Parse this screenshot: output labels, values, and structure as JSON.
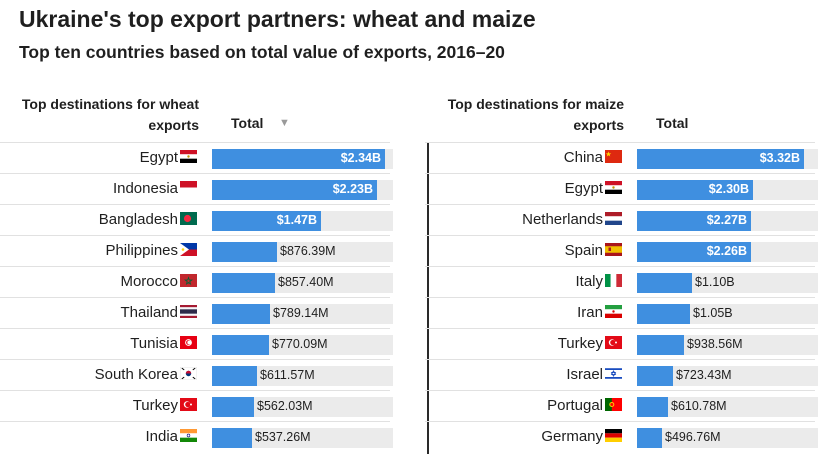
{
  "title": "Ukraine's top export partners: wheat and maize",
  "subtitle": "Top ten countries based on total value of exports, 2016–20",
  "chart_data": [
    {
      "type": "bar",
      "header_destination": "Top destinations for wheat exports",
      "header_total": "Total",
      "sort_icon": "sort-descending-triangle-icon",
      "axis_max": 2.45,
      "unit": "billion USD",
      "categories": [
        "Egypt",
        "Indonesia",
        "Bangladesh",
        "Philippines",
        "Morocco",
        "Thailand",
        "Tunisia",
        "South Korea",
        "Turkey",
        "India"
      ],
      "values": [
        2.34,
        2.23,
        1.47,
        0.87639,
        0.8574,
        0.78914,
        0.77009,
        0.61157,
        0.56203,
        0.53726
      ],
      "labels": [
        "$2.34B",
        "$2.23B",
        "$1.47B",
        "$876.39M",
        "$857.40M",
        "$789.14M",
        "$770.09M",
        "$611.57M",
        "$562.03M",
        "$537.26M"
      ],
      "flags": [
        "egypt-flag",
        "indonesia-flag",
        "bangladesh-flag",
        "philippines-flag",
        "morocco-flag",
        "thailand-flag",
        "tunisia-flag",
        "south-korea-flag",
        "turkey-flag",
        "india-flag"
      ]
    },
    {
      "type": "bar",
      "header_destination": "Top destinations for maize exports",
      "header_total": "Total",
      "axis_max": 3.6,
      "unit": "billion USD",
      "categories": [
        "China",
        "Egypt",
        "Netherlands",
        "Spain",
        "Italy",
        "Iran",
        "Turkey",
        "Israel",
        "Portugal",
        "Germany"
      ],
      "values": [
        3.32,
        2.3,
        2.27,
        2.26,
        1.1,
        1.05,
        0.93856,
        0.72343,
        0.61078,
        0.49676
      ],
      "labels": [
        "$3.32B",
        "$2.30B",
        "$2.27B",
        "$2.26B",
        "$1.10B",
        "$1.05B",
        "$938.56M",
        "$723.43M",
        "$610.78M",
        "$496.76M"
      ],
      "flags": [
        "china-flag",
        "egypt-flag",
        "netherlands-flag",
        "spain-flag",
        "italy-flag",
        "iran-flag",
        "turkey-flag",
        "israel-flag",
        "portugal-flag",
        "germany-flag"
      ]
    }
  ],
  "colors": {
    "bar": "#3f8fe0",
    "track": "#ebebeb",
    "divider": "#2a2a2a"
  }
}
